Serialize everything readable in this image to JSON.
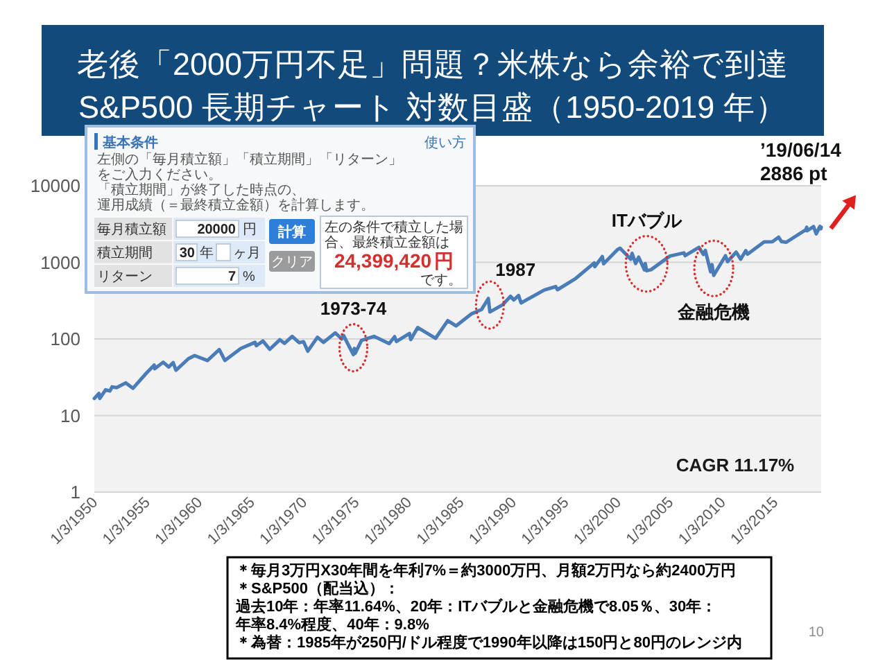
{
  "chart_data": {
    "type": "line",
    "title": "老後「2000万円不足」問題？米株なら余裕で到達",
    "subtitle": "S&P500 長期チャート 対数目盛（1950-2019 年）",
    "x": [
      "1950-01-03",
      "1950-06-12",
      "1950-07-13",
      "1951-01-31",
      "1951-06-29",
      "1951-09-14",
      "1952-02-20",
      "1953-01-05",
      "1953-09-14",
      "1954-12-31",
      "1955-09-23",
      "1955-10-11",
      "1956-08-02",
      "1957-02-12",
      "1957-07-15",
      "1957-10-22",
      "1958-12-31",
      "1959-08-03",
      "1960-10-25",
      "1961-12-12",
      "1962-06-26",
      "1963-12-31",
      "1965-05-13",
      "1965-06-28",
      "1966-02-09",
      "1966-10-07",
      "1967-09-25",
      "1968-03-05",
      "1968-11-29",
      "1969-07-29",
      "1969-12-31",
      "1970-05-26",
      "1971-04-28",
      "1971-11-23",
      "1973-01-11",
      "1973-08-22",
      "1973-10-26",
      "1974-10-03",
      "1974-11-07",
      "1974-12-06",
      "1975-07-15",
      "1976-09-21",
      "1978-03-06",
      "1978-09-12",
      "1978-11-14",
      "1980-02-13",
      "1980-03-27",
      "1980-11-28",
      "1982-08-12",
      "1983-10-10",
      "1984-07-24",
      "1985-12-31",
      "1986-12-31",
      "1987-08-25",
      "1987-10-19",
      "1988-12-30",
      "1989-10-09",
      "1990-01-30",
      "1990-07-16",
      "1990-10-11",
      "1992-12-31",
      "1994-02-02",
      "1994-04-04",
      "1995-12-29",
      "1997-10-07",
      "1997-10-27",
      "1998-07-17",
      "1998-08-31",
      "1999-12-31",
      "2000-03-24",
      "2001-04-04",
      "2001-05-21",
      "2001-09-21",
      "2002-01-04",
      "2002-07-23",
      "2002-08-22",
      "2002-10-09",
      "2003-03-11",
      "2004-12-31",
      "2006-05-05",
      "2006-06-13",
      "2007-10-09",
      "2008-03-10",
      "2008-05-19",
      "2008-11-20",
      "2009-01-06",
      "2009-03-09",
      "2010-04-23",
      "2010-07-02",
      "2011-04-29",
      "2011-10-03",
      "2012-04-02",
      "2012-06-01",
      "2013-12-31",
      "2014-10-15",
      "2015-05-21",
      "2015-08-25",
      "2016-02-11",
      "2017-12-29",
      "2018-01-26",
      "2018-02-08",
      "2018-09-20",
      "2018-12-24",
      "2019-04-30",
      "2019-06-03",
      "2019-06-14"
    ],
    "series": [
      {
        "color": "#4a7db8",
        "values": [
          16.7,
          19.4,
          16.7,
          21.7,
          20.9,
          23.7,
          23.1,
          26.7,
          22.7,
          36.0,
          45.6,
          40.8,
          49.6,
          43.0,
          49.1,
          39.0,
          55.2,
          60.7,
          52.3,
          72.6,
          52.3,
          75.0,
          90.3,
          81.6,
          94.1,
          73.2,
          97.6,
          87.7,
          108,
          89.5,
          92.1,
          69.3,
          105,
          90.2,
          120,
          100,
          111,
          62.3,
          75.2,
          65.0,
          95.6,
          108,
          86.9,
          107,
          92.5,
          118,
          98.2,
          141,
          102,
          173,
          148,
          211,
          242,
          337,
          225,
          278,
          360,
          323,
          369,
          295,
          436,
          482,
          439,
          616,
          983,
          877,
          1190,
          957,
          1470,
          1530,
          1100,
          1310,
          966,
          1170,
          798,
          963,
          777,
          801,
          1210,
          1330,
          1220,
          1570,
          1270,
          1430,
          752,
          935,
          677,
          1220,
          1020,
          1360,
          1100,
          1420,
          1280,
          1850,
          1860,
          2130,
          1870,
          1830,
          2670,
          2870,
          2580,
          2930,
          2350,
          2950,
          2750,
          2886
        ]
      }
    ],
    "xlim": [
      "1950-01-03",
      "2019-06-14"
    ],
    "xticks": [
      {
        "value": "1950-01-03",
        "label": "1/3/1950"
      },
      {
        "value": "1955-01-03",
        "label": "1/3/1955"
      },
      {
        "value": "1960-01-03",
        "label": "1/3/1960"
      },
      {
        "value": "1965-01-03",
        "label": "1/3/1965"
      },
      {
        "value": "1970-01-03",
        "label": "1/3/1970"
      },
      {
        "value": "1975-01-03",
        "label": "1/3/1975"
      },
      {
        "value": "1980-01-03",
        "label": "1/3/1980"
      },
      {
        "value": "1985-01-03",
        "label": "1/3/1985"
      },
      {
        "value": "1990-01-03",
        "label": "1/3/1990"
      },
      {
        "value": "1995-01-03",
        "label": "1/3/1995"
      },
      {
        "value": "2000-01-03",
        "label": "1/3/2000"
      },
      {
        "value": "2005-01-03",
        "label": "1/3/2005"
      },
      {
        "value": "2010-01-03",
        "label": "1/3/2010"
      },
      {
        "value": "2015-01-03",
        "label": "1/3/2015"
      }
    ],
    "ylim": [
      1,
      10000
    ],
    "yticks": [
      1,
      10,
      100,
      1000,
      10000
    ],
    "log": true,
    "grid": "y",
    "annotations": [
      {
        "text": "1973-74",
        "x": "1974-10-03",
        "y": 62.3
      },
      {
        "text": "1987",
        "x": "1987-10-19",
        "y": 225
      },
      {
        "text": "ITバブル",
        "x": "2002-10-09",
        "y": 777
      },
      {
        "text": "金融危機",
        "x": "2009-03-09",
        "y": 677
      },
      {
        "text": "’19/06/14\n2886 pt",
        "x": "2019-06-14",
        "y": 2886
      },
      "CAGR 11.17%",
      "基本条件",
      "使い方",
      "左側の「毎月積立額」「積立期間」「リターン」をご入力ください。",
      "「積立期間」が終了した時点の、運用成績（＝最終積立金額）を計算します。",
      "毎月積立額",
      "積立期間",
      "リターン",
      "20000",
      "円",
      "30",
      "年",
      "ヶ月",
      "7",
      "%",
      "計算",
      "クリア",
      "左の条件で積立した場合、最終積立金額は",
      "24,399,420",
      "円",
      "です。",
      "＊毎月3万円X30年間を年利7%＝約3000万円、月額2万円なら約2400万円",
      "＊S&P500（配当込）：",
      "過去10年：年率11.64%、20年：ITバブルと金融危機で8.05％、30年：年率8.4%程度、40年：9.8%",
      "＊為替：1985年が250円/ドル程度で1990年以降は150円と80円のレンジ内",
      "10"
    ]
  }
}
